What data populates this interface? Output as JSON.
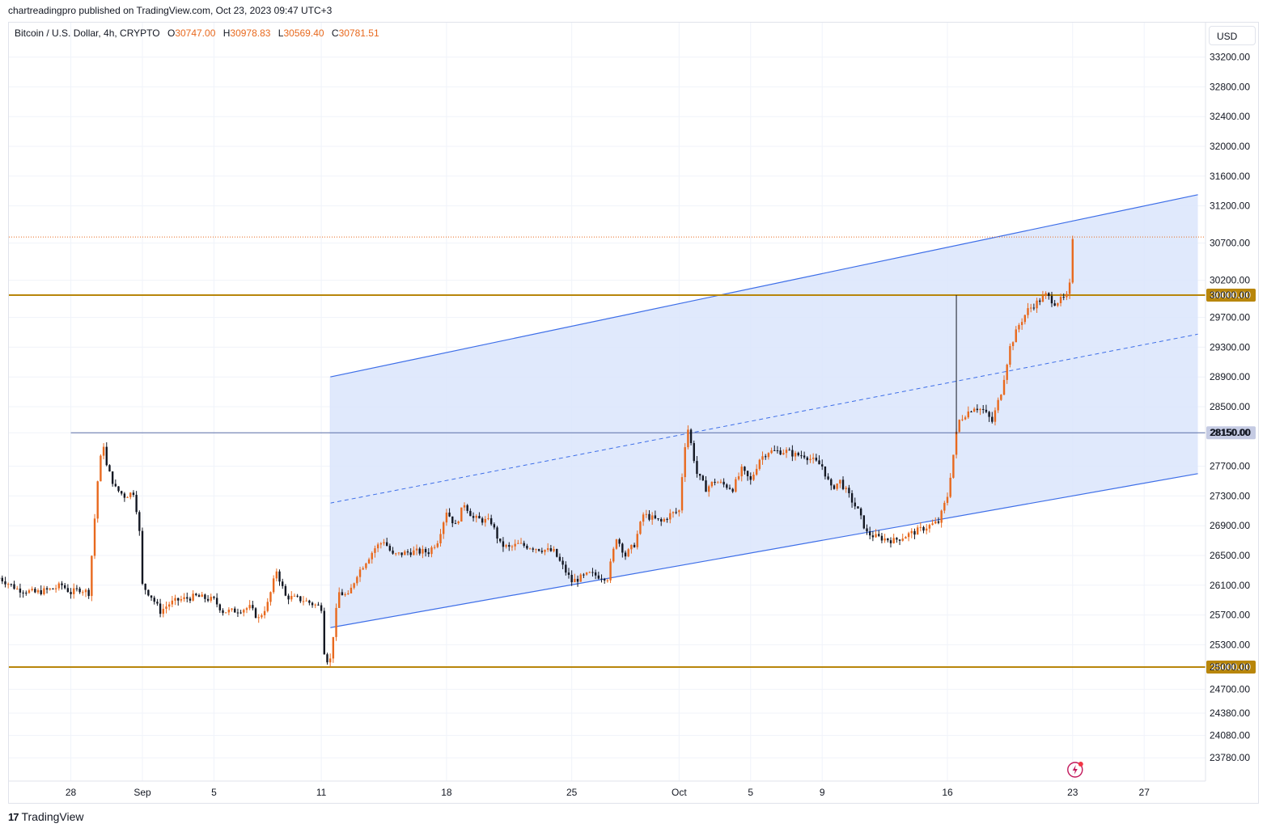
{
  "header": {
    "published": "chartreadingpro published on TradingView.com, Oct 23, 2023 09:47 UTC+3"
  },
  "legend": {
    "symbol": "Bitcoin / U.S. Dollar, 4h, CRYPTO",
    "open_label": "O",
    "open": "30747.00",
    "high_label": "H",
    "high": "30978.83",
    "low_label": "L",
    "low": "30569.40",
    "close_label": "C",
    "close": "30781.51"
  },
  "currency_button": {
    "label": "USD"
  },
  "footer": {
    "brand": "TradingView"
  },
  "colors": {
    "candle_up": "#e8691e",
    "candle_down": "#131722",
    "channel_line": "#3d6ee8",
    "channel_fill": "#dbe5fb",
    "support_line": "#b8860b",
    "mid_line": "#5b6fa8",
    "badge_highlight": "#c2185b"
  },
  "chart_data": {
    "type": "candlestick",
    "symbol": "BTCUSD",
    "interval": "4h",
    "last_price": 30781.51,
    "y_ticks": [
      23780,
      24080,
      24380,
      24700,
      25000,
      25300,
      25700,
      26100,
      26500,
      26900,
      27300,
      27700,
      28150,
      28500,
      28900,
      29300,
      29700,
      30000,
      30200,
      30700,
      31200,
      31600,
      32000,
      32400,
      32800,
      33200
    ],
    "y_tick_labels": [
      "23780.00",
      "24080.00",
      "24380.00",
      "24700.00",
      "25000.00",
      "25300.00",
      "25700.00",
      "26100.00",
      "26500.00",
      "26900.00",
      "27300.00",
      "27700.00",
      "28150.00",
      "28500.00",
      "28900.00",
      "29300.00",
      "29700.00",
      "30000.00",
      "30200.00",
      "30700.00",
      "31200.00",
      "31600.00",
      "32000.00",
      "32400.00",
      "32800.00",
      "33200.00"
    ],
    "x_ticks": [
      {
        "day": -4,
        "label": "28"
      },
      {
        "day": 0,
        "label": "Sep"
      },
      {
        "day": 4,
        "label": "5"
      },
      {
        "day": 10,
        "label": "11"
      },
      {
        "day": 17,
        "label": "18"
      },
      {
        "day": 24,
        "label": "25"
      },
      {
        "day": 30,
        "label": "Oct"
      },
      {
        "day": 34,
        "label": "5"
      },
      {
        "day": 38,
        "label": "9"
      },
      {
        "day": 45,
        "label": "16"
      },
      {
        "day": 52,
        "label": "23"
      },
      {
        "day": 56,
        "label": "27"
      }
    ],
    "x_range_days": [
      -7.5,
      59
    ],
    "highlighted_levels": [
      {
        "value": 30000,
        "label": "30000.00",
        "style": "gold"
      },
      {
        "value": 28150,
        "label": "28150.00",
        "style": "blue"
      },
      {
        "value": 25000,
        "label": "25000.00",
        "style": "gold"
      }
    ],
    "close_path": [
      [
        -8,
        26200
      ],
      [
        -7,
        26050
      ],
      [
        -6,
        26000
      ],
      [
        -5,
        26050
      ],
      [
        -4.5,
        26100
      ],
      [
        -4,
        26000
      ],
      [
        -3.5,
        26050
      ],
      [
        -3,
        26000
      ],
      [
        -2.5,
        27500
      ],
      [
        -2.2,
        28050
      ],
      [
        -2,
        27700
      ],
      [
        -1.5,
        27400
      ],
      [
        -1,
        27300
      ],
      [
        -0.5,
        27350
      ],
      [
        -0.2,
        26950
      ],
      [
        0,
        26100
      ],
      [
        0.5,
        25950
      ],
      [
        1,
        25750
      ],
      [
        1.5,
        25850
      ],
      [
        2,
        25900
      ],
      [
        3,
        25950
      ],
      [
        4,
        25900
      ],
      [
        4.5,
        25750
      ],
      [
        5,
        25750
      ],
      [
        6,
        25800
      ],
      [
        6.5,
        25650
      ],
      [
        7,
        25850
      ],
      [
        7.5,
        26300
      ],
      [
        8,
        25950
      ],
      [
        9,
        25900
      ],
      [
        9.5,
        25850
      ],
      [
        10,
        25800
      ],
      [
        10.2,
        25100
      ],
      [
        10.5,
        25100
      ],
      [
        10.8,
        25700
      ],
      [
        11,
        26000
      ],
      [
        11.5,
        25950
      ],
      [
        12,
        26250
      ],
      [
        13,
        26600
      ],
      [
        13.5,
        26700
      ],
      [
        14,
        26500
      ],
      [
        15,
        26550
      ],
      [
        16,
        26550
      ],
      [
        16.5,
        26700
      ],
      [
        17,
        27100
      ],
      [
        17.5,
        26900
      ],
      [
        18,
        27200
      ],
      [
        18.5,
        27000
      ],
      [
        19.5,
        26950
      ],
      [
        20,
        26650
      ],
      [
        20.5,
        26600
      ],
      [
        21,
        26650
      ],
      [
        22,
        26600
      ],
      [
        23,
        26550
      ],
      [
        23.5,
        26350
      ],
      [
        24,
        26150
      ],
      [
        24.5,
        26200
      ],
      [
        25,
        26250
      ],
      [
        26,
        26200
      ],
      [
        26.5,
        26750
      ],
      [
        27,
        26500
      ],
      [
        27.5,
        26650
      ],
      [
        28,
        27050
      ],
      [
        28.5,
        27000
      ],
      [
        29,
        26950
      ],
      [
        29.5,
        27050
      ],
      [
        30,
        27100
      ],
      [
        30.3,
        27950
      ],
      [
        30.5,
        28200
      ],
      [
        31,
        27600
      ],
      [
        31.5,
        27400
      ],
      [
        32,
        27500
      ],
      [
        33,
        27400
      ],
      [
        33.5,
        27650
      ],
      [
        34,
        27500
      ],
      [
        34.5,
        27800
      ],
      [
        35,
        27900
      ],
      [
        35.5,
        27900
      ],
      [
        36,
        27900
      ],
      [
        36.5,
        27850
      ],
      [
        37,
        27850
      ],
      [
        38,
        27700
      ],
      [
        38.5,
        27400
      ],
      [
        39,
        27500
      ],
      [
        39.5,
        27300
      ],
      [
        40,
        27100
      ],
      [
        40.5,
        26800
      ],
      [
        41,
        26750
      ],
      [
        42,
        26700
      ],
      [
        43,
        26800
      ],
      [
        44,
        26900
      ],
      [
        44.5,
        26950
      ],
      [
        45,
        27300
      ],
      [
        45.3,
        27800
      ],
      [
        45.6,
        28300
      ],
      [
        46,
        28400
      ],
      [
        46.5,
        28500
      ],
      [
        47,
        28450
      ],
      [
        47.5,
        28300
      ],
      [
        48,
        28700
      ],
      [
        48.5,
        29300
      ],
      [
        49,
        29600
      ],
      [
        49.5,
        29800
      ],
      [
        50,
        29900
      ],
      [
        50.5,
        30000
      ],
      [
        51,
        29900
      ],
      [
        51.5,
        29950
      ],
      [
        51.8,
        30000
      ],
      [
        52,
        30781
      ]
    ],
    "spikes": [
      {
        "day": 45.5,
        "high": 30000
      }
    ],
    "channel": {
      "start_day": 10.5,
      "end_day": 59,
      "upper_start": 28900,
      "upper_end": 31350,
      "lower_start": 25530,
      "lower_end": 27600
    }
  }
}
